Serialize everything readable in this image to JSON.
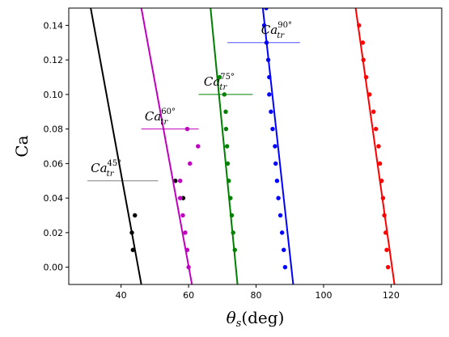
{
  "chart_data": {
    "type": "scatter",
    "title": "",
    "xlabel": "θs(deg)",
    "ylabel": "Ca",
    "xlim": [
      24.5,
      135
    ],
    "ylim": [
      -0.01,
      0.15
    ],
    "xticks": [
      40,
      60,
      80,
      100,
      120
    ],
    "yticks": [
      0.0,
      0.02,
      0.04,
      0.06,
      0.08,
      0.1,
      0.12,
      0.14
    ],
    "xtick_labels": [
      "40",
      "60",
      "80",
      "100",
      "120"
    ],
    "ytick_labels": [
      "0.00",
      "0.02",
      "0.04",
      "0.06",
      "0.08",
      "0.10",
      "0.12",
      "0.14"
    ],
    "grid": false,
    "legend": "none",
    "series": [
      {
        "color": "#000000",
        "points": [
          [
            43.5,
            0.01
          ],
          [
            43.2,
            0.02
          ],
          [
            44.1,
            0.03
          ],
          [
            58.4,
            0.04
          ],
          [
            56.1,
            0.05
          ]
        ],
        "line": [
          [
            31,
            0.15
          ],
          [
            46,
            -0.01
          ]
        ]
      },
      {
        "color": "#bf00bf",
        "points": [
          [
            60.0,
            0.0
          ],
          [
            59.6,
            0.01
          ],
          [
            59.0,
            0.02
          ],
          [
            58.3,
            0.03
          ],
          [
            57.5,
            0.04
          ],
          [
            57.5,
            0.05
          ],
          [
            60.4,
            0.06
          ],
          [
            62.8,
            0.07
          ],
          [
            59.6,
            0.08
          ]
        ],
        "line": [
          [
            46,
            0.15
          ],
          [
            61,
            -0.01
          ]
        ]
      },
      {
        "color": "#008000",
        "points": [
          [
            73.7,
            0.01
          ],
          [
            73.2,
            0.02
          ],
          [
            72.8,
            0.03
          ],
          [
            72.4,
            0.04
          ],
          [
            71.9,
            0.05
          ],
          [
            71.6,
            0.06
          ],
          [
            71.4,
            0.07
          ],
          [
            71.1,
            0.08
          ],
          [
            71.0,
            0.09
          ],
          [
            70.6,
            0.1
          ],
          [
            69.2,
            0.11
          ]
        ],
        "line": [
          [
            66.5,
            0.15
          ],
          [
            74.5,
            -0.01
          ]
        ]
      },
      {
        "color": "#0000ff",
        "points": [
          [
            88.6,
            0.0
          ],
          [
            88.2,
            0.01
          ],
          [
            87.7,
            0.02
          ],
          [
            87.2,
            0.03
          ],
          [
            86.6,
            0.04
          ],
          [
            86.2,
            0.05
          ],
          [
            85.8,
            0.06
          ],
          [
            85.6,
            0.07
          ],
          [
            84.9,
            0.08
          ],
          [
            84.4,
            0.09
          ],
          [
            83.9,
            0.1
          ],
          [
            83.9,
            0.11
          ],
          [
            83.6,
            0.12
          ],
          [
            83.1,
            0.13
          ],
          [
            82.4,
            0.14
          ],
          [
            83.0,
            0.15
          ]
        ],
        "line": [
          [
            82,
            0.15
          ],
          [
            91,
            -0.01
          ]
        ]
      },
      {
        "color": "#ff0000",
        "points": [
          [
            119.1,
            0.0
          ],
          [
            118.7,
            0.01
          ],
          [
            118.4,
            0.02
          ],
          [
            118.0,
            0.03
          ],
          [
            117.6,
            0.04
          ],
          [
            117.2,
            0.05
          ],
          [
            116.7,
            0.06
          ],
          [
            116.3,
            0.07
          ],
          [
            115.5,
            0.08
          ],
          [
            114.8,
            0.09
          ],
          [
            113.6,
            0.1
          ],
          [
            112.6,
            0.11
          ],
          [
            111.8,
            0.12
          ],
          [
            111.6,
            0.13
          ],
          [
            110.5,
            0.14
          ]
        ],
        "line": [
          [
            109.5,
            0.15
          ],
          [
            121,
            -0.01
          ]
        ]
      }
    ],
    "annotations": [
      {
        "base": "Ca",
        "sub": "tr",
        "sup": "45°",
        "x": 31,
        "y": 0.055,
        "hline": {
          "y": 0.05,
          "x0": 30,
          "x1": 51
        },
        "color": "#808080"
      },
      {
        "base": "Ca",
        "sub": "tr",
        "sup": "60°",
        "x": 47,
        "y": 0.085,
        "hline": {
          "y": 0.08,
          "x0": 46,
          "x1": 63
        },
        "color": "#bf00bf"
      },
      {
        "base": "Ca",
        "sub": "tr",
        "sup": "75°",
        "x": 64.5,
        "y": 0.105,
        "hline": {
          "y": 0.1,
          "x0": 63,
          "x1": 79
        },
        "color": "#008000"
      },
      {
        "base": "Ca",
        "sub": "tr",
        "sup": "90°",
        "x": 81.5,
        "y": 0.135,
        "hline": {
          "y": 0.13,
          "x0": 71.5,
          "x1": 93
        },
        "color": "#5050ff"
      }
    ]
  }
}
